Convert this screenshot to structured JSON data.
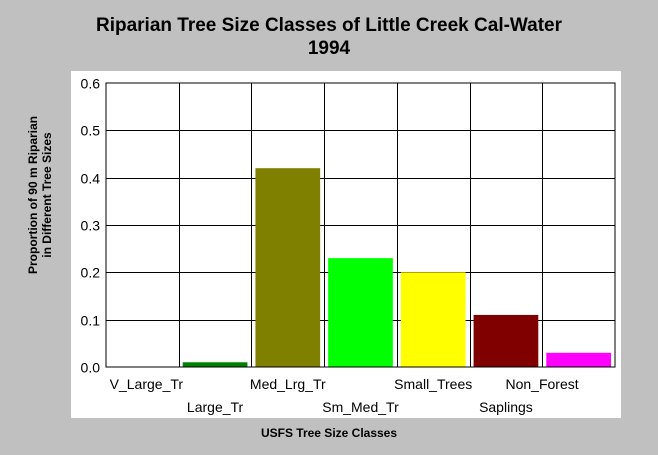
{
  "chart_data": {
    "type": "bar",
    "title": [
      "Riparian Tree Size Classes of Little Creek Cal-Water",
      "1994"
    ],
    "xlabel": "USFS Tree Size Classes",
    "ylabel": [
      "Proportion of 90 m Riparian",
      "in Different Tree Sizes"
    ],
    "categories": [
      "V_Large_Tr",
      "Large_Tr",
      "Med_Lrg_Tr",
      "Sm_Med_Tr",
      "Small_Trees",
      "Saplings",
      "Non_Forest"
    ],
    "values": [
      0.0,
      0.01,
      0.42,
      0.23,
      0.2,
      0.11,
      0.03
    ],
    "colors": [
      "#808080",
      "#008000",
      "#808000",
      "#00ff00",
      "#ffff00",
      "#800000",
      "#ff00ff"
    ],
    "ylim": [
      0,
      0.6
    ],
    "yticks": [
      "0.0",
      "0.1",
      "0.2",
      "0.3",
      "0.4",
      "0.5",
      "0.6"
    ],
    "grid": true,
    "legend": "none"
  }
}
